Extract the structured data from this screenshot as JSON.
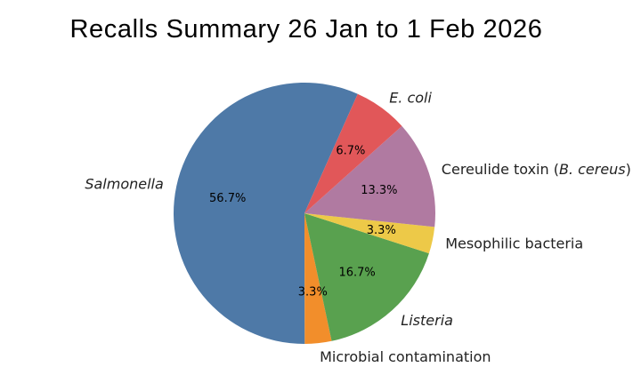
{
  "chart_data": {
    "type": "pie",
    "title": "Recalls Summary 26 Jan to 1 Feb 2026",
    "start_angle_deg": 66,
    "direction": "counterclockwise",
    "slices": [
      {
        "label": "Salmonella",
        "italic": true,
        "value": 56.7,
        "pct_label": "56.7%",
        "color": "#4e79a7"
      },
      {
        "label": "Microbial contamination",
        "italic": false,
        "value": 3.3,
        "pct_label": "3.3%",
        "color": "#f28e2b"
      },
      {
        "label": "Listeria",
        "italic": true,
        "value": 16.7,
        "pct_label": "16.7%",
        "color": "#59a14f"
      },
      {
        "label": "Mesophilic bacteria",
        "italic": false,
        "value": 3.3,
        "pct_label": "3.3%",
        "color": "#edc948"
      },
      {
        "label": "Cereulide toxin (B. cereus)",
        "label_parts": [
          {
            "text": "Cereulide toxin (",
            "italic": false
          },
          {
            "text": "B. cereus",
            "italic": true
          },
          {
            "text": ")",
            "italic": false
          }
        ],
        "value": 13.3,
        "pct_label": "13.3%",
        "color": "#b07aa1"
      },
      {
        "label": "E. coli",
        "italic": true,
        "value": 6.7,
        "pct_label": "6.7%",
        "color": "#e15759"
      }
    ]
  }
}
